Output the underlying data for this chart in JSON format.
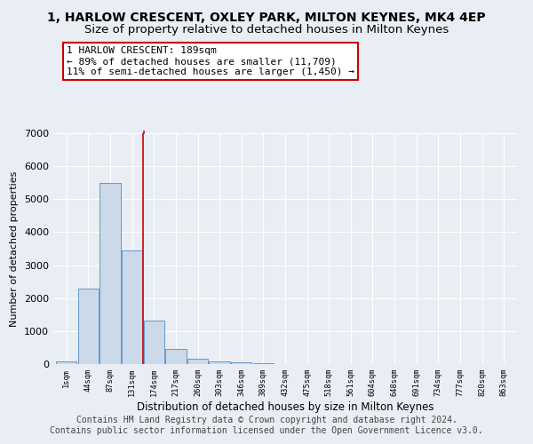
{
  "title": "1, HARLOW CRESCENT, OXLEY PARK, MILTON KEYNES, MK4 4EP",
  "subtitle": "Size of property relative to detached houses in Milton Keynes",
  "xlabel": "Distribution of detached houses by size in Milton Keynes",
  "ylabel": "Number of detached properties",
  "bar_color": "#ccd9e8",
  "bar_edge_color": "#6699cc",
  "bin_labels": [
    "1sqm",
    "44sqm",
    "87sqm",
    "131sqm",
    "174sqm",
    "217sqm",
    "260sqm",
    "303sqm",
    "346sqm",
    "389sqm",
    "432sqm",
    "475sqm",
    "518sqm",
    "561sqm",
    "604sqm",
    "648sqm",
    "691sqm",
    "734sqm",
    "777sqm",
    "820sqm",
    "863sqm"
  ],
  "bar_heights": [
    80,
    2280,
    5480,
    3450,
    1320,
    470,
    165,
    90,
    45,
    20,
    0,
    0,
    0,
    0,
    0,
    0,
    0,
    0,
    0,
    0,
    0
  ],
  "ylim": [
    0,
    7000
  ],
  "yticks": [
    0,
    1000,
    2000,
    3000,
    4000,
    5000,
    6000,
    7000
  ],
  "property_line_x": 3.5,
  "property_line_color": "#cc0000",
  "annotation_text": "1 HARLOW CRESCENT: 189sqm\n← 89% of detached houses are smaller (11,709)\n11% of semi-detached houses are larger (1,450) →",
  "annotation_box_color": "#ffffff",
  "annotation_box_edge": "#cc0000",
  "footer_text": "Contains HM Land Registry data © Crown copyright and database right 2024.\nContains public sector information licensed under the Open Government Licence v3.0.",
  "background_color": "#e8eef4",
  "grid_color": "#ffffff",
  "title_fontsize": 10,
  "subtitle_fontsize": 9.5,
  "footer_fontsize": 7
}
